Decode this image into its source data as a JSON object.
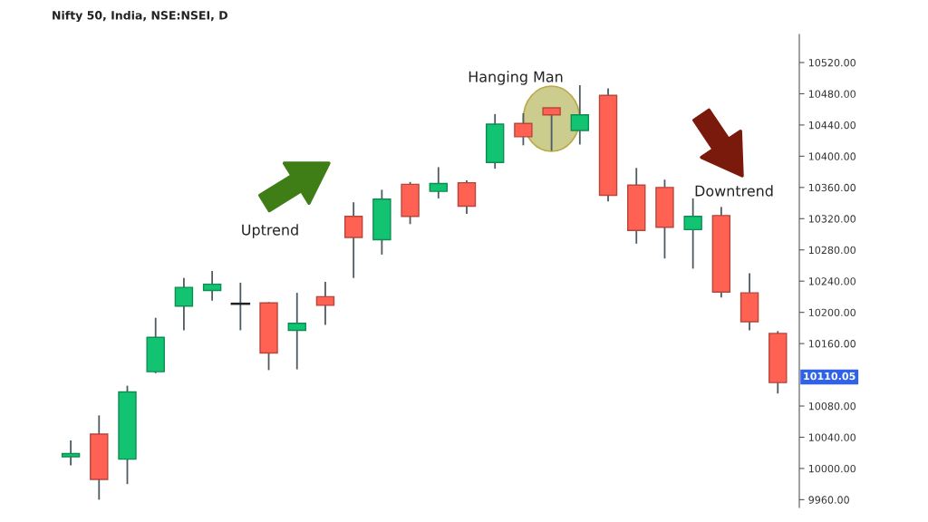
{
  "chart_data": {
    "type": "candlestick",
    "title": "Nifty 50, India, NSE:NSEI, D",
    "categories": [
      null,
      null,
      null,
      null,
      null,
      null,
      null,
      null,
      null,
      null,
      null,
      null,
      null,
      null,
      null,
      null,
      null,
      null,
      null,
      null,
      null,
      null,
      null,
      null,
      null,
      null
    ],
    "ohlc": [
      [
        10015,
        10036,
        10004,
        10019
      ],
      [
        10044,
        10068,
        9960,
        9986
      ],
      [
        10012,
        10106,
        9980,
        10098
      ],
      [
        10124,
        10193,
        10122,
        10168
      ],
      [
        10208,
        10244,
        10177,
        10232
      ],
      [
        10228,
        10253,
        10215,
        10236
      ],
      [
        10211,
        10238,
        10177,
        10211
      ],
      [
        10212,
        10213,
        10126,
        10148
      ],
      [
        10177,
        10225,
        10127,
        10186
      ],
      [
        10220,
        10239,
        10184,
        10209
      ],
      [
        10323,
        10341,
        10244,
        10296
      ],
      [
        10293,
        10357,
        10274,
        10345
      ],
      [
        10364,
        10367,
        10313,
        10323
      ],
      [
        10355,
        10386,
        10346,
        10365
      ],
      [
        10366,
        10369,
        10326,
        10336
      ],
      [
        10392,
        10454,
        10384,
        10441
      ],
      [
        10442,
        10455,
        10414,
        10425
      ],
      [
        10462,
        10462,
        10407,
        10453
      ],
      [
        10433,
        10491,
        10415,
        10453
      ],
      [
        10478,
        10487,
        10342,
        10350
      ],
      [
        10363,
        10385,
        10288,
        10305
      ],
      [
        10360,
        10370,
        10269,
        10309
      ],
      [
        10306,
        10346,
        10256,
        10323
      ],
      [
        10324,
        10335,
        10219,
        10226
      ],
      [
        10225,
        10250,
        10177,
        10188
      ],
      [
        10173,
        10176,
        10096,
        10110.05
      ]
    ],
    "colors": [
      "#12c472",
      "#ff6152",
      "#12c472",
      "#12c472",
      "#12c472",
      "#12c472",
      "#222222",
      "#ff6152",
      "#12c472",
      "#ff6152",
      "#ff6152",
      "#12c472",
      "#ff6152",
      "#12c472",
      "#ff6152",
      "#12c472",
      "#ff6152",
      "#ff6152",
      "#12c472",
      "#ff6152",
      "#ff6152",
      "#ff6152",
      "#12c472",
      "#ff6152",
      "#ff6152",
      "#ff6152"
    ],
    "ylim": [
      9950,
      10556
    ],
    "yticks": [
      {
        "value": 9960,
        "label": "9960.00"
      },
      {
        "value": 10000,
        "label": "10000.00"
      },
      {
        "value": 10040,
        "label": "10040.00"
      },
      {
        "value": 10080,
        "label": "10080.00"
      },
      {
        "value": 10160,
        "label": "10160.00"
      },
      {
        "value": 10200,
        "label": "10200.00"
      },
      {
        "value": 10240,
        "label": "10240.00"
      },
      {
        "value": 10280,
        "label": "10280.00"
      },
      {
        "value": 10320,
        "label": "10320.00"
      },
      {
        "value": 10360,
        "label": "10360.00"
      },
      {
        "value": 10400,
        "label": "10400.00"
      },
      {
        "value": 10440,
        "label": "10440.00"
      },
      {
        "value": 10480,
        "label": "10480.00"
      },
      {
        "value": 10520,
        "label": "10520.00"
      }
    ],
    "tick_labels": "y",
    "annotations": [
      "Hanging Man",
      "Uptrend",
      "Downtrend",
      "10110.05"
    ]
  }
}
